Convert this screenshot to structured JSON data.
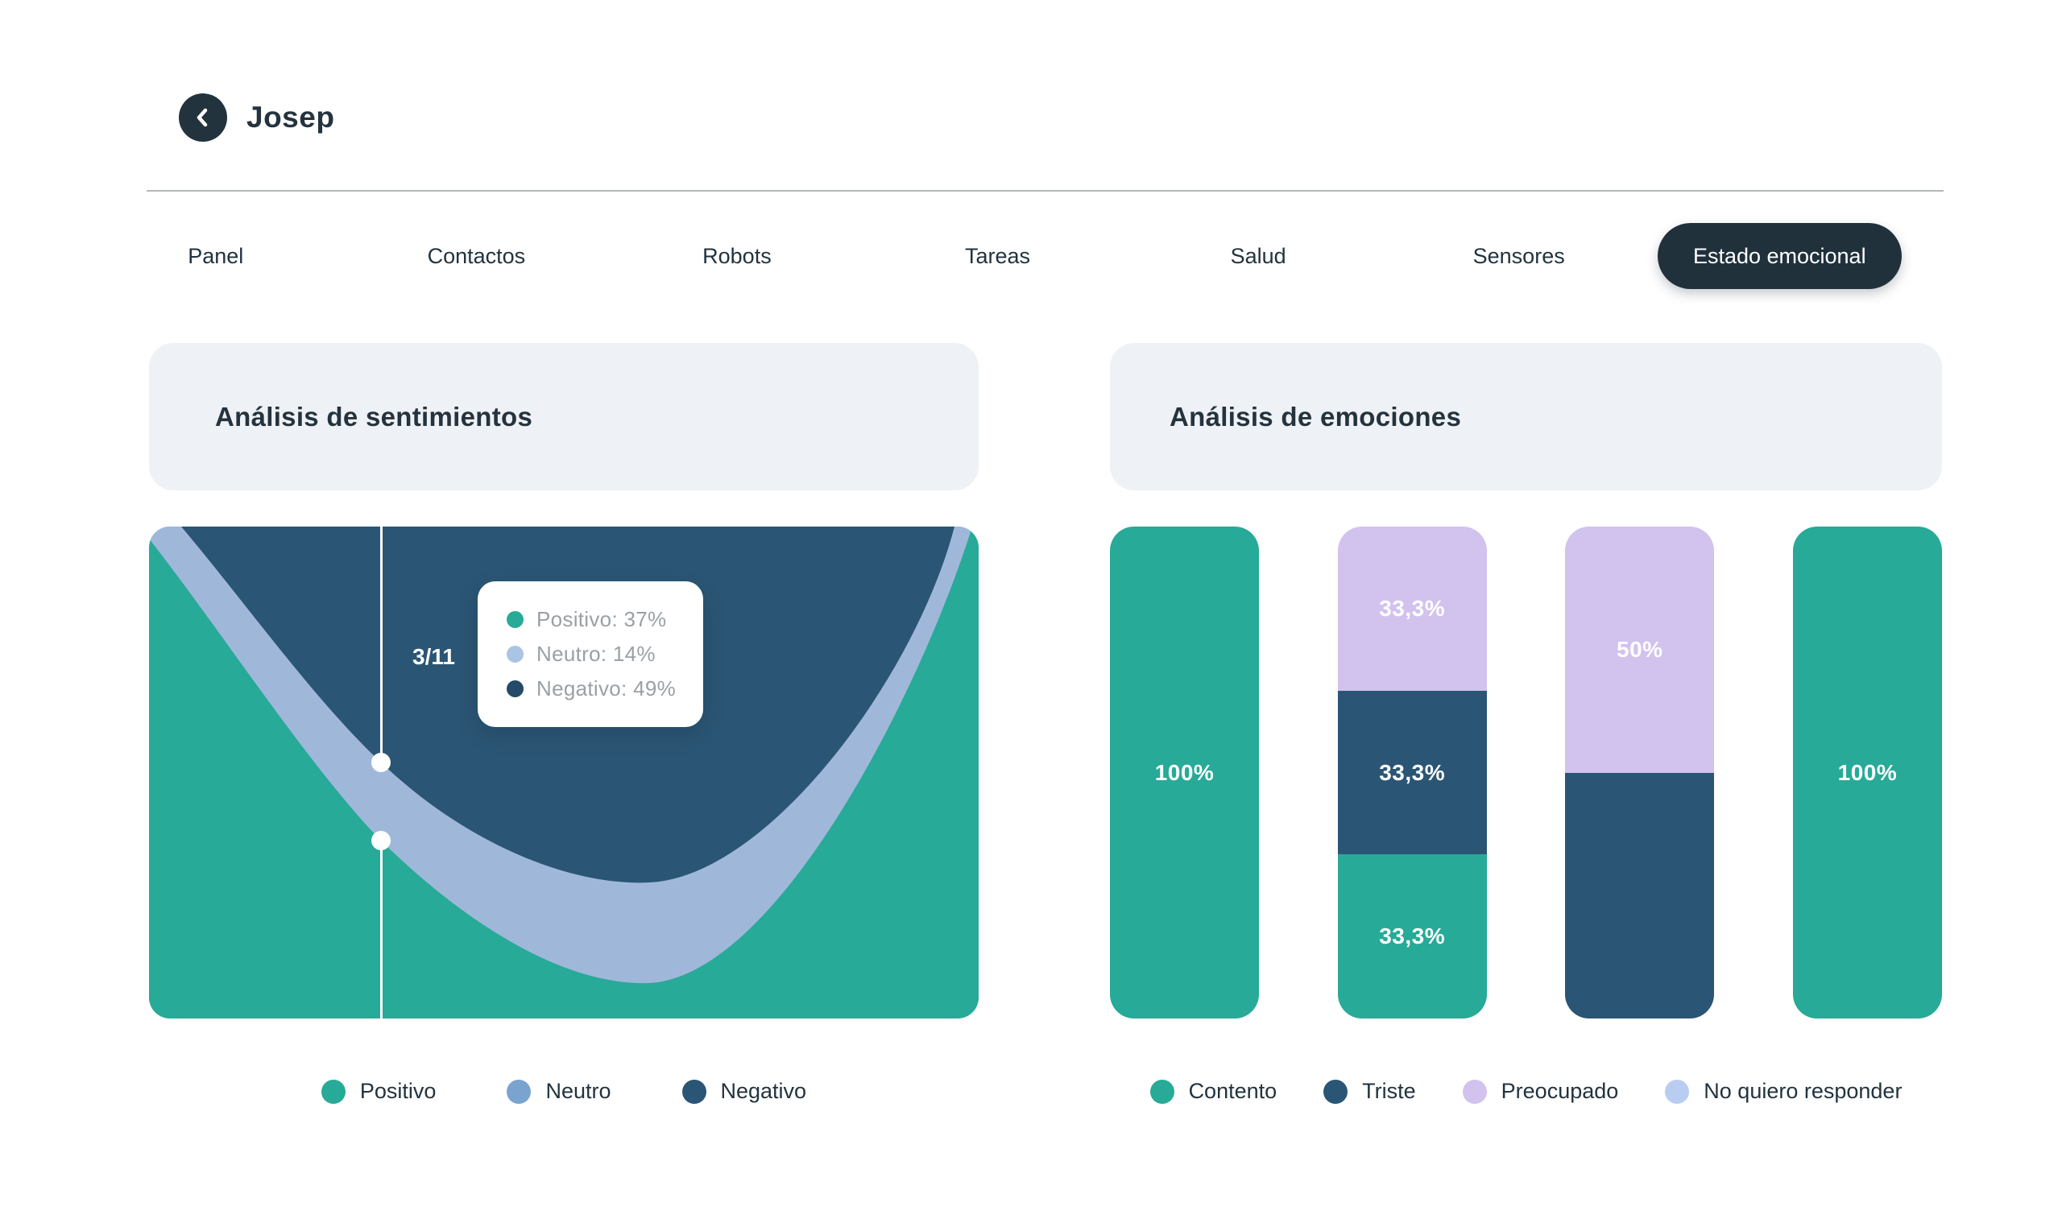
{
  "header": {
    "title": "Josep",
    "back_icon": "chevron-left"
  },
  "tabs": [
    {
      "label": "Panel",
      "active": false
    },
    {
      "label": "Contactos",
      "active": false
    },
    {
      "label": "Robots",
      "active": false
    },
    {
      "label": "Tareas",
      "active": false
    },
    {
      "label": "Salud",
      "active": false
    },
    {
      "label": "Sensores",
      "active": false
    },
    {
      "label": "Estado emocional",
      "active": true
    }
  ],
  "colors": {
    "dark": "#22333e",
    "teal": "#27aa97",
    "navy": "#2b5574",
    "band": "#9fb8da",
    "lavender": "#d2c2ee",
    "periwinkle": "#b9cdf2",
    "neutro_legend_dot": "#7aa3d0",
    "neutro_tooltip_dot": "#a9c4e4",
    "negativo_tooltip_dot": "#234a68",
    "panel_bg": "#eef2f6",
    "white": "#ffffff"
  },
  "sentiment": {
    "title": "Análisis de sentimientos",
    "tooltip": {
      "date_label": "3/11",
      "items": [
        {
          "label": "Positivo: 37%"
        },
        {
          "label": "Neutro: 14%"
        },
        {
          "label": "Negativo: 49%"
        }
      ]
    },
    "legend": [
      {
        "label": "Positivo"
      },
      {
        "label": "Neutro"
      },
      {
        "label": "Negativo"
      }
    ]
  },
  "emotions": {
    "title": "Análisis de emociones",
    "legend": [
      {
        "label": "Contento"
      },
      {
        "label": "Triste"
      },
      {
        "label": "Preocupado"
      },
      {
        "label": "No quiero responder"
      }
    ]
  },
  "chart_data": [
    {
      "type": "area",
      "title": "Análisis de sentimientos",
      "series": [
        "Positivo",
        "Neutro",
        "Negativo"
      ],
      "highlight_x": "3/11",
      "highlight_values": {
        "Positivo": 37,
        "Neutro": 14,
        "Negativo": 49
      },
      "axes_visible": false,
      "legend_position": "bottom"
    },
    {
      "type": "bar",
      "stacked": true,
      "title": "Análisis de emociones",
      "categories": [
        "bar-1",
        "bar-2",
        "bar-3",
        "bar-4"
      ],
      "ylim": [
        0,
        100
      ],
      "legend_position": "bottom",
      "bars": [
        {
          "segments": [
            {
              "emotion": "Contento",
              "value": 100,
              "label": "100%",
              "color": "teal"
            }
          ]
        },
        {
          "segments": [
            {
              "emotion": "Preocupado",
              "value": 33.3,
              "label": "33,3%",
              "color": "lavender"
            },
            {
              "emotion": "Triste",
              "value": 33.3,
              "label": "33,3%",
              "color": "navy"
            },
            {
              "emotion": "Contento",
              "value": 33.3,
              "label": "33,3%",
              "color": "teal"
            }
          ]
        },
        {
          "segments": [
            {
              "emotion": "Preocupado",
              "value": 50,
              "label": "50%",
              "color": "lavender"
            },
            {
              "emotion": "Triste",
              "value": 50,
              "label": "",
              "color": "navy"
            }
          ]
        },
        {
          "segments": [
            {
              "emotion": "Contento",
              "value": 100,
              "label": "100%",
              "color": "teal"
            }
          ]
        }
      ]
    }
  ]
}
